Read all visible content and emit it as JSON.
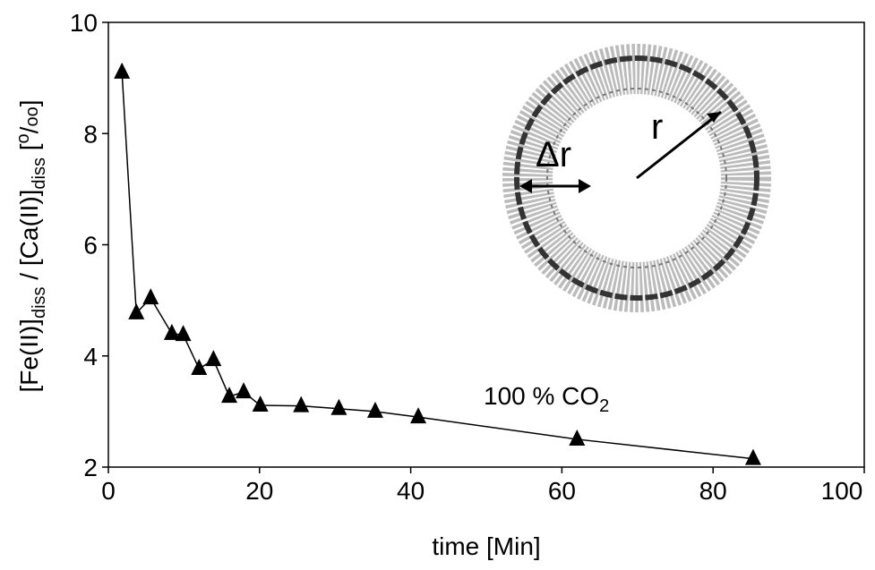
{
  "chart_data": {
    "type": "line",
    "xlabel": "time [Min]",
    "ylabel_parts": [
      "[Fe(II)]",
      "diss",
      " / [Ca(II)]",
      "diss",
      " [",
      "o",
      "/",
      "oo",
      "]"
    ],
    "annotation_parts": [
      "100 % CO",
      "2"
    ],
    "inset_labels": [
      "Δr",
      "r"
    ],
    "x": [
      1.8,
      3.7,
      5.6,
      8.4,
      9.9,
      12.0,
      13.9,
      16.0,
      17.9,
      20.1,
      25.5,
      30.5,
      35.3,
      41.0,
      62.0,
      85.3
    ],
    "values": [
      9.1,
      4.77,
      5.04,
      4.4,
      4.38,
      3.77,
      3.93,
      3.27,
      3.35,
      3.11,
      3.1,
      3.05,
      3.0,
      2.9,
      2.5,
      2.15
    ],
    "color": "#000000",
    "xlim": [
      0,
      100
    ],
    "xticks": [
      0,
      20,
      40,
      60,
      80,
      100
    ],
    "ylim": [
      2,
      10
    ],
    "yticks": [
      2,
      4,
      6,
      8,
      10
    ]
  }
}
